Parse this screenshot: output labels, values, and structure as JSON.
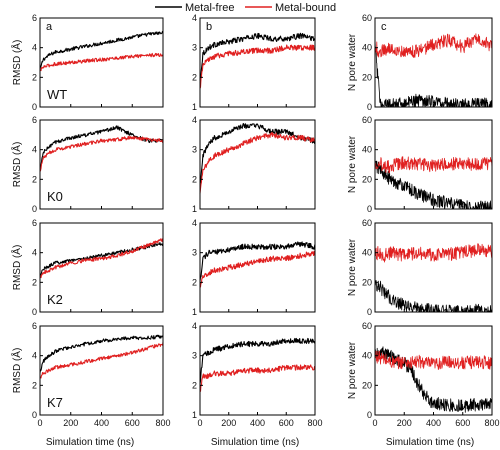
{
  "legend": {
    "entries": [
      {
        "label": "Metal-free",
        "color": "#000000"
      },
      {
        "label": "Metal-bound",
        "color": "#e02020"
      }
    ]
  },
  "column_letters": [
    "a",
    "b",
    "c"
  ],
  "row_labels": [
    "WT",
    "K0",
    "K2",
    "K7"
  ],
  "xlabel": "Simulation time (ns)",
  "ylabel_rmsd": "RMSD (Å)",
  "ylabel_water": "N pore water",
  "chart_data": [
    {
      "type": "line",
      "panel": "a-WT",
      "column": 0,
      "row": 0,
      "xlim": [
        0,
        800
      ],
      "ylim": [
        0,
        6
      ],
      "xticks": [
        0,
        200,
        400,
        600,
        800
      ],
      "yticks": [
        0,
        2,
        4,
        6
      ],
      "series": [
        {
          "name": "Metal-free",
          "color": "#000000",
          "x": [
            0,
            20,
            60,
            100,
            200,
            300,
            400,
            500,
            600,
            700,
            800
          ],
          "y": [
            2.5,
            3.2,
            3.5,
            3.7,
            3.9,
            4.1,
            4.3,
            4.5,
            4.7,
            4.9,
            5.0
          ]
        },
        {
          "name": "Metal-bound",
          "color": "#e02020",
          "x": [
            0,
            20,
            60,
            100,
            200,
            300,
            400,
            500,
            600,
            700,
            800
          ],
          "y": [
            2.4,
            2.7,
            2.8,
            2.9,
            3.0,
            3.1,
            3.2,
            3.3,
            3.4,
            3.5,
            3.5
          ]
        }
      ]
    },
    {
      "type": "line",
      "panel": "b-WT",
      "column": 1,
      "row": 0,
      "xlim": [
        0,
        800
      ],
      "ylim": [
        1,
        4
      ],
      "xticks": [
        0,
        200,
        400,
        600,
        800
      ],
      "yticks": [
        1,
        2,
        3,
        4
      ],
      "series": [
        {
          "name": "Metal-free",
          "color": "#000000",
          "x": [
            0,
            20,
            60,
            100,
            200,
            300,
            400,
            500,
            600,
            700,
            800
          ],
          "y": [
            1.8,
            2.8,
            3.0,
            3.1,
            3.2,
            3.3,
            3.4,
            3.3,
            3.3,
            3.4,
            3.3
          ]
        },
        {
          "name": "Metal-bound",
          "color": "#e02020",
          "x": [
            0,
            20,
            60,
            100,
            200,
            300,
            400,
            500,
            600,
            700,
            800
          ],
          "y": [
            1.6,
            2.4,
            2.6,
            2.7,
            2.8,
            2.85,
            2.9,
            2.9,
            3.0,
            3.0,
            3.0
          ]
        }
      ]
    },
    {
      "type": "line",
      "panel": "c-WT",
      "column": 2,
      "row": 0,
      "xlim": [
        0,
        800
      ],
      "ylim": [
        0,
        60
      ],
      "xticks": [
        0,
        200,
        400,
        600,
        800
      ],
      "yticks": [
        0,
        20,
        40,
        60
      ],
      "series": [
        {
          "name": "Metal-free",
          "color": "#000000",
          "x": [
            0,
            10,
            30,
            50,
            100,
            200,
            300,
            400,
            500,
            600,
            700,
            800
          ],
          "y": [
            45,
            30,
            8,
            2,
            1,
            2,
            5,
            4,
            2,
            1,
            2,
            2
          ]
        },
        {
          "name": "Metal-bound",
          "color": "#e02020",
          "x": [
            0,
            10,
            30,
            50,
            100,
            200,
            300,
            400,
            500,
            600,
            700,
            800
          ],
          "y": [
            38,
            40,
            36,
            38,
            40,
            37,
            38,
            42,
            45,
            40,
            48,
            40
          ]
        }
      ]
    },
    {
      "type": "line",
      "panel": "a-K0",
      "column": 0,
      "row": 1,
      "xlim": [
        0,
        800
      ],
      "ylim": [
        0,
        6
      ],
      "xticks": [
        0,
        200,
        400,
        600,
        800
      ],
      "yticks": [
        0,
        2,
        4,
        6
      ],
      "series": [
        {
          "name": "Metal-free",
          "color": "#000000",
          "x": [
            0,
            20,
            60,
            100,
            200,
            300,
            400,
            500,
            600,
            700,
            800
          ],
          "y": [
            2.5,
            3.8,
            4.2,
            4.5,
            4.8,
            5.0,
            5.2,
            5.5,
            5.0,
            4.6,
            4.6
          ]
        },
        {
          "name": "Metal-bound",
          "color": "#e02020",
          "x": [
            0,
            20,
            60,
            100,
            200,
            300,
            400,
            500,
            600,
            700,
            800
          ],
          "y": [
            2.5,
            3.4,
            3.8,
            4.0,
            4.2,
            4.4,
            4.6,
            4.7,
            4.8,
            4.7,
            4.6
          ]
        }
      ]
    },
    {
      "type": "line",
      "panel": "b-K0",
      "column": 1,
      "row": 1,
      "xlim": [
        0,
        800
      ],
      "ylim": [
        1,
        4
      ],
      "xticks": [
        0,
        200,
        400,
        600,
        800
      ],
      "yticks": [
        1,
        2,
        3,
        4
      ],
      "series": [
        {
          "name": "Metal-free",
          "color": "#000000",
          "x": [
            0,
            20,
            60,
            100,
            200,
            300,
            400,
            500,
            600,
            700,
            800
          ],
          "y": [
            1.8,
            2.8,
            3.2,
            3.4,
            3.6,
            3.8,
            3.8,
            3.6,
            3.6,
            3.4,
            3.3
          ]
        },
        {
          "name": "Metal-bound",
          "color": "#e02020",
          "x": [
            0,
            20,
            60,
            100,
            200,
            300,
            400,
            500,
            600,
            700,
            800
          ],
          "y": [
            1.5,
            2.3,
            2.6,
            2.8,
            3.0,
            3.2,
            3.4,
            3.5,
            3.4,
            3.4,
            3.3
          ]
        }
      ]
    },
    {
      "type": "line",
      "panel": "c-K0",
      "column": 2,
      "row": 1,
      "xlim": [
        0,
        800
      ],
      "ylim": [
        0,
        60
      ],
      "xticks": [
        0,
        200,
        400,
        600,
        800
      ],
      "yticks": [
        0,
        20,
        40,
        60
      ],
      "series": [
        {
          "name": "Metal-free",
          "color": "#000000",
          "x": [
            0,
            20,
            50,
            100,
            150,
            200,
            300,
            400,
            500,
            600,
            700,
            800
          ],
          "y": [
            30,
            28,
            25,
            20,
            18,
            15,
            10,
            6,
            4,
            2,
            1,
            1
          ]
        },
        {
          "name": "Metal-bound",
          "color": "#e02020",
          "x": [
            0,
            20,
            50,
            100,
            150,
            200,
            300,
            400,
            500,
            600,
            700,
            800
          ],
          "y": [
            30,
            32,
            30,
            28,
            30,
            31,
            30,
            29,
            30,
            31,
            30,
            31
          ]
        }
      ]
    },
    {
      "type": "line",
      "panel": "a-K2",
      "column": 0,
      "row": 2,
      "xlim": [
        0,
        800
      ],
      "ylim": [
        0,
        6
      ],
      "xticks": [
        0,
        200,
        400,
        600,
        800
      ],
      "yticks": [
        0,
        2,
        4,
        6
      ],
      "series": [
        {
          "name": "Metal-free",
          "color": "#000000",
          "x": [
            0,
            20,
            60,
            100,
            200,
            300,
            400,
            500,
            600,
            700,
            800
          ],
          "y": [
            2.4,
            2.9,
            3.1,
            3.3,
            3.5,
            3.6,
            3.8,
            4.0,
            4.2,
            4.4,
            4.6
          ]
        },
        {
          "name": "Metal-bound",
          "color": "#e02020",
          "x": [
            0,
            20,
            60,
            100,
            200,
            300,
            400,
            500,
            600,
            700,
            800
          ],
          "y": [
            2.3,
            2.6,
            2.8,
            3.0,
            3.3,
            3.5,
            3.6,
            3.8,
            4.1,
            4.5,
            4.9
          ]
        }
      ]
    },
    {
      "type": "line",
      "panel": "b-K2",
      "column": 1,
      "row": 2,
      "xlim": [
        0,
        800
      ],
      "ylim": [
        1,
        4
      ],
      "xticks": [
        0,
        200,
        400,
        600,
        800
      ],
      "yticks": [
        1,
        2,
        3,
        4
      ],
      "series": [
        {
          "name": "Metal-free",
          "color": "#000000",
          "x": [
            0,
            20,
            60,
            100,
            200,
            300,
            400,
            500,
            600,
            700,
            800
          ],
          "y": [
            2.0,
            2.8,
            3.0,
            3.0,
            3.1,
            3.2,
            3.2,
            3.2,
            3.2,
            3.3,
            3.2
          ]
        },
        {
          "name": "Metal-bound",
          "color": "#e02020",
          "x": [
            0,
            20,
            60,
            100,
            200,
            300,
            400,
            500,
            600,
            700,
            800
          ],
          "y": [
            1.8,
            2.2,
            2.3,
            2.4,
            2.5,
            2.6,
            2.7,
            2.8,
            2.8,
            2.9,
            3.0
          ]
        }
      ]
    },
    {
      "type": "line",
      "panel": "c-K2",
      "column": 2,
      "row": 2,
      "xlim": [
        0,
        800
      ],
      "ylim": [
        0,
        60
      ],
      "xticks": [
        0,
        200,
        400,
        600,
        800
      ],
      "yticks": [
        0,
        20,
        40,
        60
      ],
      "series": [
        {
          "name": "Metal-free",
          "color": "#000000",
          "x": [
            0,
            20,
            50,
            80,
            120,
            200,
            300,
            400,
            500,
            600,
            700,
            800
          ],
          "y": [
            20,
            18,
            15,
            12,
            8,
            4,
            2,
            1,
            1,
            0,
            1,
            0
          ]
        },
        {
          "name": "Metal-bound",
          "color": "#e02020",
          "x": [
            0,
            20,
            50,
            80,
            120,
            200,
            300,
            400,
            500,
            600,
            700,
            800
          ],
          "y": [
            38,
            40,
            37,
            39,
            40,
            38,
            40,
            38,
            39,
            40,
            42,
            41
          ]
        }
      ]
    },
    {
      "type": "line",
      "panel": "a-K7",
      "column": 0,
      "row": 3,
      "xlim": [
        0,
        800
      ],
      "ylim": [
        0,
        6
      ],
      "xticks": [
        0,
        200,
        400,
        600,
        800
      ],
      "yticks": [
        0,
        2,
        4,
        6
      ],
      "series": [
        {
          "name": "Metal-free",
          "color": "#000000",
          "x": [
            0,
            20,
            60,
            100,
            200,
            300,
            400,
            500,
            600,
            700,
            800
          ],
          "y": [
            2.8,
            3.6,
            4.0,
            4.3,
            4.6,
            4.8,
            5.0,
            5.1,
            5.2,
            5.2,
            5.3
          ]
        },
        {
          "name": "Metal-bound",
          "color": "#e02020",
          "x": [
            0,
            20,
            60,
            100,
            200,
            300,
            400,
            500,
            600,
            700,
            800
          ],
          "y": [
            2.5,
            2.8,
            3.0,
            3.2,
            3.4,
            3.6,
            3.8,
            4.0,
            4.2,
            4.5,
            4.8
          ]
        }
      ]
    },
    {
      "type": "line",
      "panel": "b-K7",
      "column": 1,
      "row": 3,
      "xlim": [
        0,
        800
      ],
      "ylim": [
        1,
        4
      ],
      "xticks": [
        0,
        200,
        400,
        600,
        800
      ],
      "yticks": [
        1,
        2,
        3,
        4
      ],
      "series": [
        {
          "name": "Metal-free",
          "color": "#000000",
          "x": [
            0,
            20,
            60,
            100,
            200,
            300,
            400,
            500,
            600,
            700,
            800
          ],
          "y": [
            2.0,
            3.0,
            3.1,
            3.2,
            3.3,
            3.4,
            3.4,
            3.4,
            3.5,
            3.5,
            3.5
          ]
        },
        {
          "name": "Metal-bound",
          "color": "#e02020",
          "x": [
            0,
            20,
            60,
            100,
            200,
            300,
            400,
            500,
            600,
            700,
            800
          ],
          "y": [
            1.8,
            2.3,
            2.3,
            2.4,
            2.4,
            2.5,
            2.5,
            2.5,
            2.6,
            2.6,
            2.6
          ]
        }
      ]
    },
    {
      "type": "line",
      "panel": "c-K7",
      "column": 2,
      "row": 3,
      "xlim": [
        0,
        800
      ],
      "ylim": [
        0,
        60
      ],
      "xticks": [
        0,
        200,
        400,
        600,
        800
      ],
      "yticks": [
        0,
        20,
        40,
        60
      ],
      "series": [
        {
          "name": "Metal-free",
          "color": "#000000",
          "x": [
            0,
            50,
            100,
            150,
            200,
            250,
            300,
            350,
            400,
            500,
            600,
            700,
            800
          ],
          "y": [
            40,
            42,
            40,
            38,
            35,
            30,
            20,
            12,
            8,
            7,
            6,
            7,
            7
          ]
        },
        {
          "name": "Metal-bound",
          "color": "#e02020",
          "x": [
            0,
            50,
            100,
            150,
            200,
            250,
            300,
            350,
            400,
            500,
            600,
            700,
            800
          ],
          "y": [
            40,
            38,
            36,
            35,
            36,
            35,
            36,
            35,
            34,
            36,
            35,
            36,
            35
          ]
        }
      ]
    }
  ]
}
